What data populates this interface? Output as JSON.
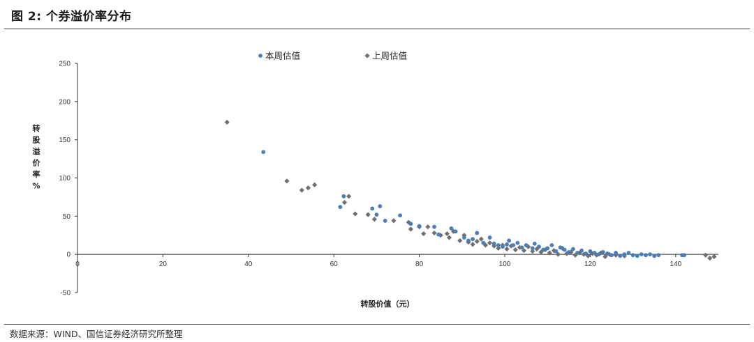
{
  "figure": {
    "title": "图 2:  个券溢价率分布",
    "source": "数据来源：WIND、国信证券经济研究所整理"
  },
  "colors": {
    "this_week": "#4a7ebb",
    "last_week": "#707070"
  },
  "chart_data": {
    "type": "scatter",
    "xlabel": "转股价值（元）",
    "ylabel": "转股溢价率%",
    "xlim": [
      0,
      150
    ],
    "ylim": [
      -50,
      250
    ],
    "xticks": [
      0,
      20,
      40,
      60,
      80,
      100,
      120,
      140
    ],
    "yticks": [
      -50,
      0,
      50,
      100,
      150,
      200,
      250
    ],
    "grid": false,
    "legend_position": "top",
    "series": [
      {
        "name": "本周估值",
        "marker": "circle",
        "color": "#4a7ebb",
        "points": [
          [
            43.5,
            134
          ],
          [
            61.5,
            62
          ],
          [
            62.3,
            76
          ],
          [
            69,
            60
          ],
          [
            70,
            52
          ],
          [
            70.8,
            63
          ],
          [
            72,
            44
          ],
          [
            75.5,
            51
          ],
          [
            78,
            40
          ],
          [
            80,
            37
          ],
          [
            83.5,
            36
          ],
          [
            84.5,
            26
          ],
          [
            87.5,
            34
          ],
          [
            88.5,
            30
          ],
          [
            90.5,
            22
          ],
          [
            91.5,
            18
          ],
          [
            92.5,
            20
          ],
          [
            93.5,
            28
          ],
          [
            95,
            15
          ],
          [
            96.5,
            22
          ],
          [
            97.5,
            14
          ],
          [
            98.5,
            12
          ],
          [
            99.5,
            10
          ],
          [
            100.5,
            13
          ],
          [
            101,
            18
          ],
          [
            102,
            12
          ],
          [
            103,
            15
          ],
          [
            104,
            9
          ],
          [
            105,
            12
          ],
          [
            106.5,
            8
          ],
          [
            107,
            14
          ],
          [
            108,
            10
          ],
          [
            109,
            6
          ],
          [
            110,
            8
          ],
          [
            111,
            12
          ],
          [
            112,
            4
          ],
          [
            113,
            9
          ],
          [
            114,
            6
          ],
          [
            115,
            3
          ],
          [
            116,
            7
          ],
          [
            117,
            2
          ],
          [
            118,
            5
          ],
          [
            119,
            1
          ],
          [
            120,
            4
          ],
          [
            121,
            2
          ],
          [
            122,
            0
          ],
          [
            123,
            3
          ],
          [
            124,
            1
          ],
          [
            125,
            -1
          ],
          [
            126,
            2
          ],
          [
            127,
            -2
          ],
          [
            128,
            0
          ],
          [
            129,
            2
          ],
          [
            130,
            -1
          ],
          [
            131,
            -2
          ],
          [
            132,
            0
          ],
          [
            133,
            -1
          ],
          [
            134,
            0
          ],
          [
            135,
            -2
          ],
          [
            136,
            -1
          ],
          [
            141.5,
            -1
          ],
          [
            142,
            -1
          ]
        ]
      },
      {
        "name": "上周估值",
        "marker": "diamond",
        "color": "#707070",
        "points": [
          [
            35,
            173
          ],
          [
            49,
            96
          ],
          [
            52.5,
            84
          ],
          [
            54,
            87
          ],
          [
            55.5,
            91
          ],
          [
            62.5,
            68
          ],
          [
            63.5,
            76
          ],
          [
            65,
            53
          ],
          [
            68,
            52
          ],
          [
            69.5,
            46
          ],
          [
            74,
            44
          ],
          [
            77.5,
            42
          ],
          [
            78,
            33
          ],
          [
            80,
            36
          ],
          [
            81,
            27
          ],
          [
            82,
            36
          ],
          [
            83.5,
            28
          ],
          [
            85,
            25
          ],
          [
            86.5,
            27
          ],
          [
            87,
            22
          ],
          [
            88,
            30
          ],
          [
            89.5,
            18
          ],
          [
            90.5,
            25
          ],
          [
            91.5,
            16
          ],
          [
            92.5,
            13
          ],
          [
            93.5,
            17
          ],
          [
            94.5,
            20
          ],
          [
            95.5,
            12
          ],
          [
            96.5,
            15
          ],
          [
            97.5,
            11
          ],
          [
            98.5,
            8
          ],
          [
            99.5,
            12
          ],
          [
            100.5,
            7
          ],
          [
            101.5,
            11
          ],
          [
            102.5,
            6
          ],
          [
            103.5,
            9
          ],
          [
            104.5,
            5
          ],
          [
            105.5,
            10
          ],
          [
            106.5,
            4
          ],
          [
            107.5,
            7
          ],
          [
            108.5,
            3
          ],
          [
            109.5,
            6
          ],
          [
            110.5,
            2
          ],
          [
            111.5,
            5
          ],
          [
            112.5,
            0
          ],
          [
            113.5,
            8
          ],
          [
            114.5,
            1
          ],
          [
            115.5,
            3
          ],
          [
            116.5,
            -1
          ],
          [
            117.5,
            2
          ],
          [
            118.5,
            0
          ],
          [
            119.5,
            -2
          ],
          [
            120.5,
            1
          ],
          [
            121.5,
            -1
          ],
          [
            122.5,
            2
          ],
          [
            123.5,
            -3
          ],
          [
            124.5,
            0
          ],
          [
            126,
            -1
          ],
          [
            128,
            -2
          ],
          [
            147,
            -1
          ],
          [
            148,
            -5
          ],
          [
            149,
            -3
          ]
        ]
      }
    ]
  }
}
